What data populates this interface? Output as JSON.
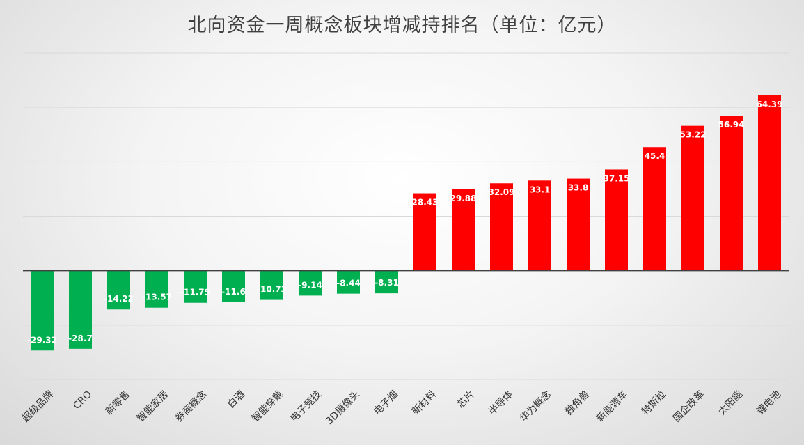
{
  "chart_data": {
    "type": "bar",
    "title": "北向资金一周概念板块增减持排名（单位：亿元）",
    "categories": [
      "超级品牌",
      "CRO",
      "新零售",
      "智能家居",
      "券商概念",
      "白酒",
      "智能穿戴",
      "电子竞技",
      "3D摄像头",
      "电子烟",
      "新材料",
      "芯片",
      "半导体",
      "华为概念",
      "独角兽",
      "新能源车",
      "特斯拉",
      "国企改革",
      "太阳能",
      "锂电池"
    ],
    "values": [
      -29.32,
      -28.7,
      -14.22,
      -13.57,
      -11.79,
      -11.6,
      -10.73,
      -9.14,
      -8.44,
      -8.31,
      28.43,
      29.88,
      32.09,
      33.1,
      33.8,
      37.15,
      45.4,
      53.22,
      56.94,
      64.39
    ],
    "value_labels": [
      "-29.32",
      "-28.7",
      "-14.22",
      "-13.57",
      "-11.79",
      "-11.6",
      "-10.73",
      "-9.14",
      "-8.44",
      "-8.31",
      "28.43",
      "29.88",
      "32.09",
      "33.1",
      "33.8",
      "37.15",
      "45.4",
      "53.22",
      "56.94",
      "64.39"
    ],
    "ylim": [
      -40,
      80
    ],
    "gridlines": [
      -40,
      -20,
      0,
      20,
      40,
      60,
      80
    ],
    "grid": true,
    "legend": "none",
    "colors": {
      "positive": "#ff0000",
      "negative": "#00b050",
      "grid": "#d9d9d9",
      "axis": "#404040"
    }
  }
}
